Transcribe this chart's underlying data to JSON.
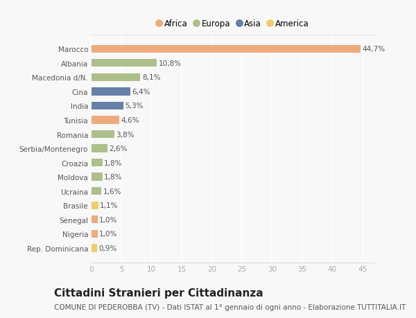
{
  "categories": [
    "Marocco",
    "Albania",
    "Macedonia d/N.",
    "Cina",
    "India",
    "Tunisia",
    "Romania",
    "Serbia/Montenegro",
    "Croazia",
    "Moldova",
    "Ucraina",
    "Brasile",
    "Senegal",
    "Nigeria",
    "Rep. Dominicana"
  ],
  "values": [
    44.7,
    10.8,
    8.1,
    6.4,
    5.3,
    4.6,
    3.8,
    2.6,
    1.8,
    1.8,
    1.6,
    1.1,
    1.0,
    1.0,
    0.9
  ],
  "labels": [
    "44,7%",
    "10,8%",
    "8,1%",
    "6,4%",
    "5,3%",
    "4,6%",
    "3,8%",
    "2,6%",
    "1,8%",
    "1,8%",
    "1,6%",
    "1,1%",
    "1,0%",
    "1,0%",
    "0,9%"
  ],
  "continents": [
    "Africa",
    "Europa",
    "Europa",
    "Asia",
    "Asia",
    "Africa",
    "Europa",
    "Europa",
    "Europa",
    "Europa",
    "Europa",
    "America",
    "Africa",
    "Africa",
    "America"
  ],
  "colors": {
    "Africa": "#EDAB7C",
    "Europa": "#ADBF8A",
    "Asia": "#6680AA",
    "America": "#F0CC6A"
  },
  "xlim": [
    0,
    47
  ],
  "xticks": [
    0,
    5,
    10,
    15,
    20,
    25,
    30,
    35,
    40,
    45
  ],
  "title": "Cittadini Stranieri per Cittadinanza",
  "subtitle": "COMUNE DI PEDEROBBA (TV) - Dati ISTAT al 1° gennaio di ogni anno - Elaborazione TUTTITALIA.IT",
  "background_color": "#f8f8f8",
  "grid_color": "#ffffff",
  "bar_height": 0.55,
  "title_fontsize": 11,
  "subtitle_fontsize": 7.5,
  "legend_order": [
    "Africa",
    "Europa",
    "Asia",
    "America"
  ]
}
